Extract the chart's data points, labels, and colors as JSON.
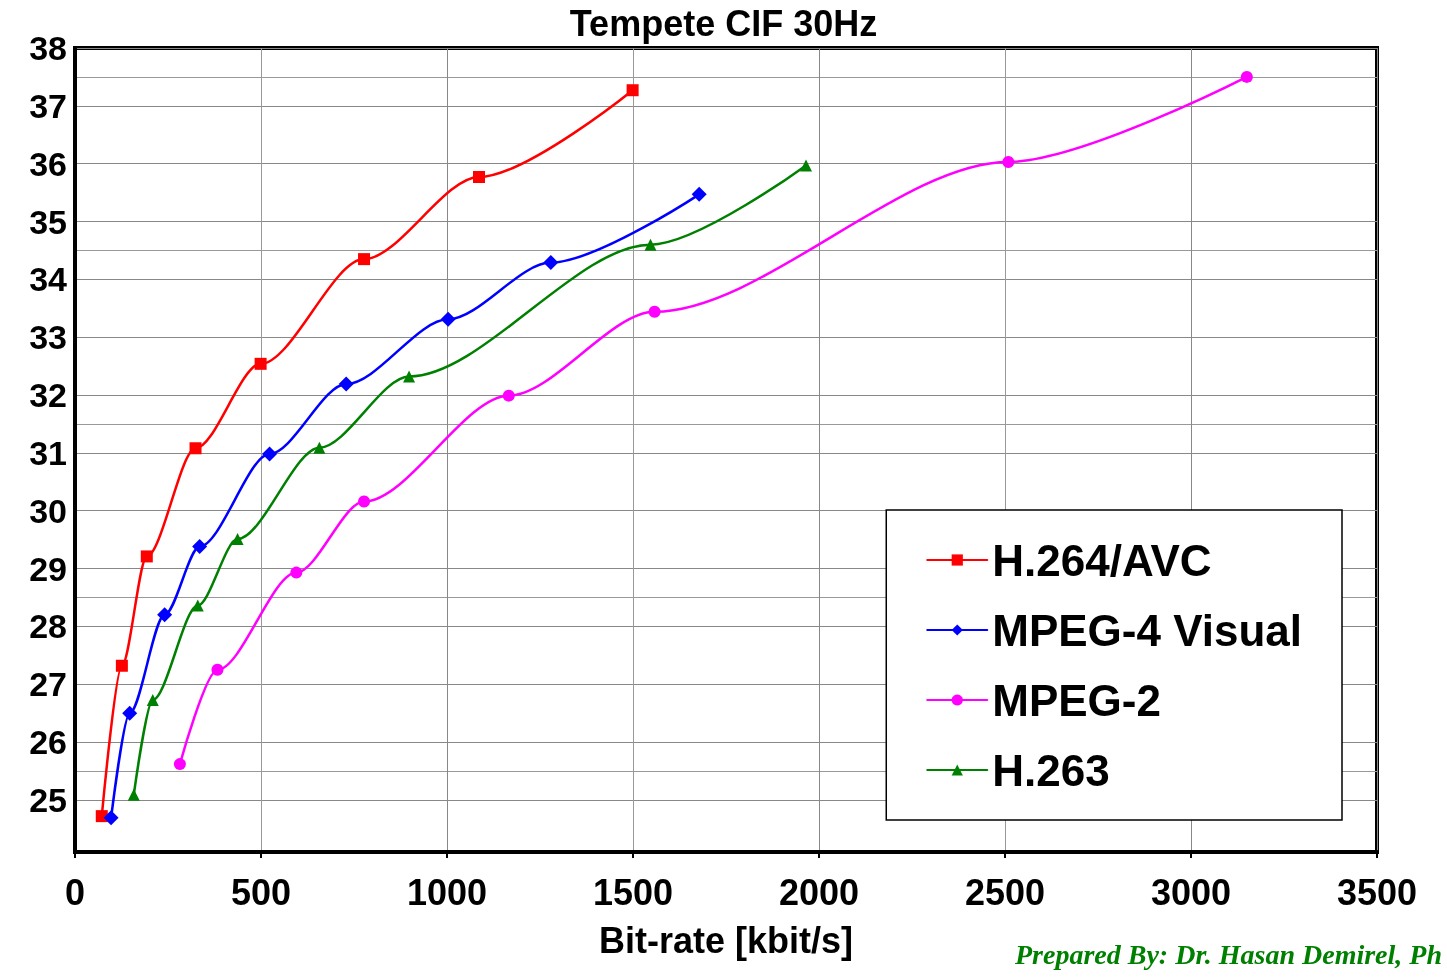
{
  "chart_data": {
    "type": "line",
    "title": "Tempete CIF 30Hz",
    "xlabel": "Bit-rate [kbit/s]",
    "annotations": [
      "Prepared By: Dr. Hasan Demirel, Ph"
    ],
    "xlim": [
      0,
      3500
    ],
    "xticks": [
      0,
      500,
      1000,
      1500,
      2000,
      2500,
      3000,
      3500
    ],
    "ylim": [
      24.1,
      38
    ],
    "yticks": [
      25,
      26,
      27,
      28,
      29,
      30,
      31,
      32,
      33,
      34,
      35,
      36,
      37,
      38
    ],
    "grid": true,
    "legend": "bottom right",
    "line_style": "solid",
    "series": [
      {
        "name": "H.264/AVC",
        "color": "#ff0000",
        "marker": "square",
        "x": [
          72,
          126,
          193,
          324,
          499,
          777,
          1086,
          1499
        ],
        "values": [
          24.72,
          27.32,
          29.21,
          31.08,
          32.54,
          34.35,
          35.77,
          37.27
        ]
      },
      {
        "name": "MPEG-4 Visual",
        "color": "#0000ff",
        "marker": "diamond",
        "x": [
          97,
          147,
          241,
          335,
          523,
          729,
          1003,
          1279,
          1678
        ],
        "values": [
          24.69,
          26.5,
          28.2,
          29.38,
          30.98,
          32.19,
          33.31,
          34.29,
          35.47
        ]
      },
      {
        "name": "MPEG-2",
        "color": "#ff00ff",
        "marker": "circle",
        "x": [
          282,
          383,
          595,
          777,
          1166,
          1558,
          2509,
          3150
        ],
        "values": [
          25.62,
          27.25,
          28.93,
          30.16,
          31.99,
          33.44,
          36.03,
          37.5
        ]
      },
      {
        "name": "H.263",
        "color": "#008000",
        "marker": "triangle",
        "x": [
          158,
          209,
          330,
          437,
          657,
          898,
          1547,
          1965
        ],
        "values": [
          25.09,
          26.73,
          28.36,
          29.51,
          31.09,
          32.32,
          34.6,
          35.97
        ]
      }
    ]
  }
}
